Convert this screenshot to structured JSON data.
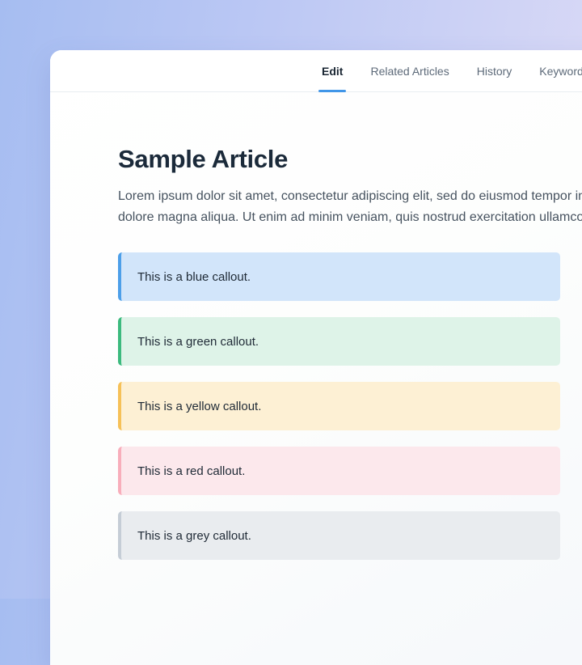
{
  "tabs": [
    {
      "label": "Edit",
      "active": true
    },
    {
      "label": "Related Articles",
      "active": false
    },
    {
      "label": "History",
      "active": false
    },
    {
      "label": "Keywords",
      "active": false
    }
  ],
  "article": {
    "title": "Sample Article",
    "body": "Lorem ipsum dolor sit amet, consectetur adipiscing elit, sed do eiusmod tempor incididunt ut labore et\ndolore magna aliqua. Ut enim ad minim veniam, quis nostrud exercitation ullamco laboris nisi ut aliquip ex ea commodo consequat."
  },
  "callouts": [
    {
      "name": "blue",
      "text": "This is a blue callout.",
      "border": "#4d9fe9",
      "background": "#d2e5fa"
    },
    {
      "name": "green",
      "text": "This is a green callout.",
      "border": "#3cba7e",
      "background": "#def3e8"
    },
    {
      "name": "yellow",
      "text": "This is a yellow callout.",
      "border": "#f6c158",
      "background": "#fdf0d4"
    },
    {
      "name": "red",
      "text": "This is a red callout.",
      "border": "#f8aebb",
      "background": "#fce8ec"
    },
    {
      "name": "grey",
      "text": "This is a grey callout.",
      "border": "#c5cdd6",
      "background": "#e9ecef"
    }
  ],
  "colors": {
    "accent": "#4196e8",
    "background_gradient_left": "#a6bdf1",
    "background_gradient_right": "#dedcf6",
    "divider": "#e9edf1"
  }
}
